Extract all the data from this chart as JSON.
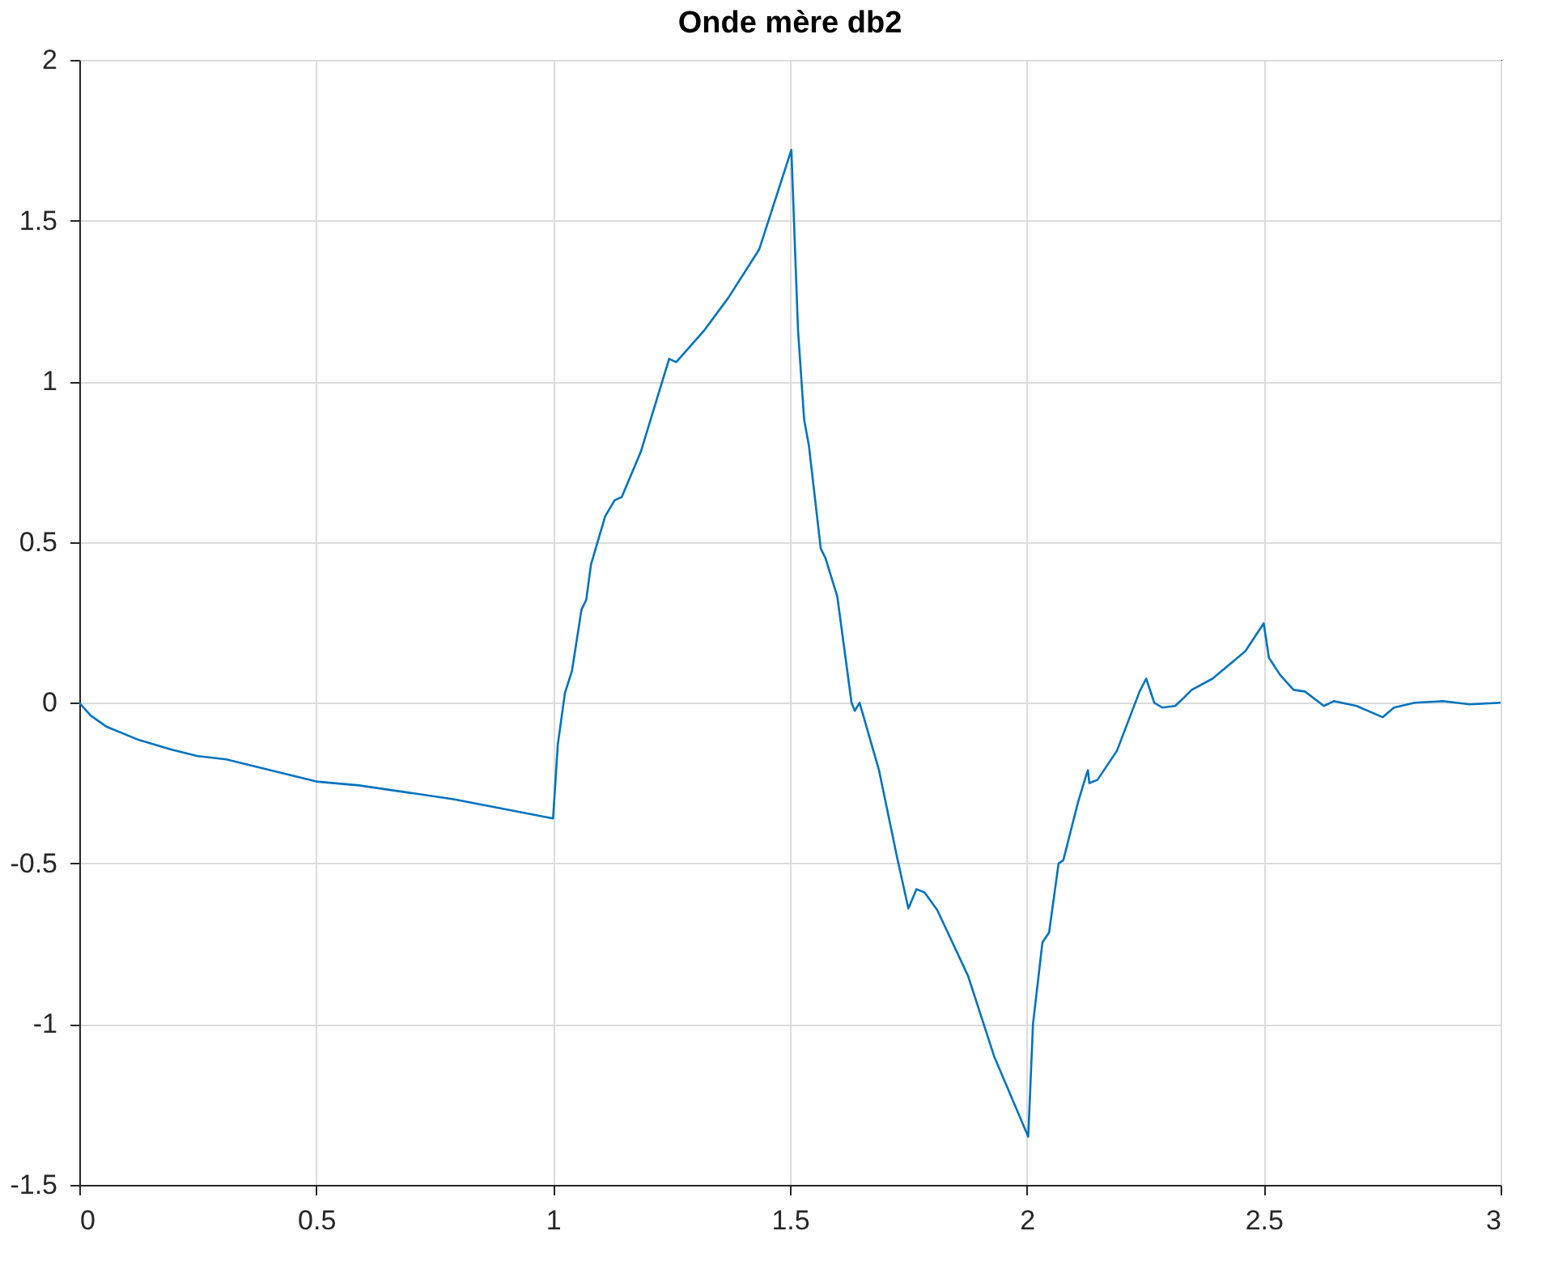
{
  "chart_data": {
    "type": "line",
    "title": "Onde mère db2",
    "xlim": [
      0,
      3
    ],
    "ylim": [
      -1.5,
      2
    ],
    "xticks": [
      0,
      0.5,
      1,
      1.5,
      2,
      2.5,
      3
    ],
    "yticks": [
      -1.5,
      -1,
      -0.5,
      0,
      0.5,
      1,
      1.5,
      2
    ],
    "grid": true,
    "line_style": "solid",
    "marker": "none",
    "series": [
      {
        "color": "#0072bd",
        "x": [
          0,
          0.024,
          0.058,
          0.126,
          0.195,
          0.25,
          0.31,
          0.5,
          0.59,
          0.79,
          1.0,
          1.01,
          1.025,
          1.04,
          1.06,
          1.07,
          1.08,
          1.11,
          1.13,
          1.145,
          1.185,
          1.245,
          1.26,
          1.32,
          1.37,
          1.435,
          1.503,
          1.517,
          1.53,
          1.54,
          1.565,
          1.575,
          1.6,
          1.63,
          1.637,
          1.647,
          1.688,
          1.726,
          1.75,
          1.767,
          1.784,
          1.811,
          1.876,
          1.931,
          2.003,
          2.013,
          2.033,
          2.047,
          2.067,
          2.077,
          2.108,
          2.125,
          2.129,
          2.132,
          2.149,
          2.19,
          2.238,
          2.252,
          2.269,
          2.286,
          2.313,
          2.331,
          2.348,
          2.392,
          2.461,
          2.5,
          2.511,
          2.535,
          2.563,
          2.587,
          2.627,
          2.648,
          2.696,
          2.751,
          2.775,
          2.819,
          2.878,
          2.935,
          3.0
        ],
        "values": [
          0,
          -0.04,
          -0.075,
          -0.116,
          -0.146,
          -0.166,
          -0.176,
          -0.245,
          -0.257,
          -0.3,
          -0.36,
          -0.13,
          0.03,
          0.1,
          0.29,
          0.32,
          0.43,
          0.58,
          0.63,
          0.64,
          0.78,
          1.07,
          1.06,
          1.16,
          1.26,
          1.41,
          1.72,
          1.16,
          0.88,
          0.8,
          0.48,
          0.45,
          0.33,
          0,
          -0.025,
          0,
          -0.21,
          -0.48,
          -0.64,
          -0.58,
          -0.59,
          -0.645,
          -0.85,
          -1.1,
          -1.35,
          -1.0,
          -0.745,
          -0.715,
          -0.5,
          -0.49,
          -0.31,
          -0.227,
          -0.21,
          -0.25,
          -0.24,
          -0.15,
          0.035,
          0.075,
          0,
          -0.015,
          -0.01,
          0.015,
          0.04,
          0.075,
          0.16,
          0.247,
          0.14,
          0.086,
          0.04,
          0.035,
          -0.01,
          0.005,
          -0.01,
          -0.045,
          -0.015,
          0,
          0.005,
          -0.005,
          0
        ]
      }
    ]
  }
}
